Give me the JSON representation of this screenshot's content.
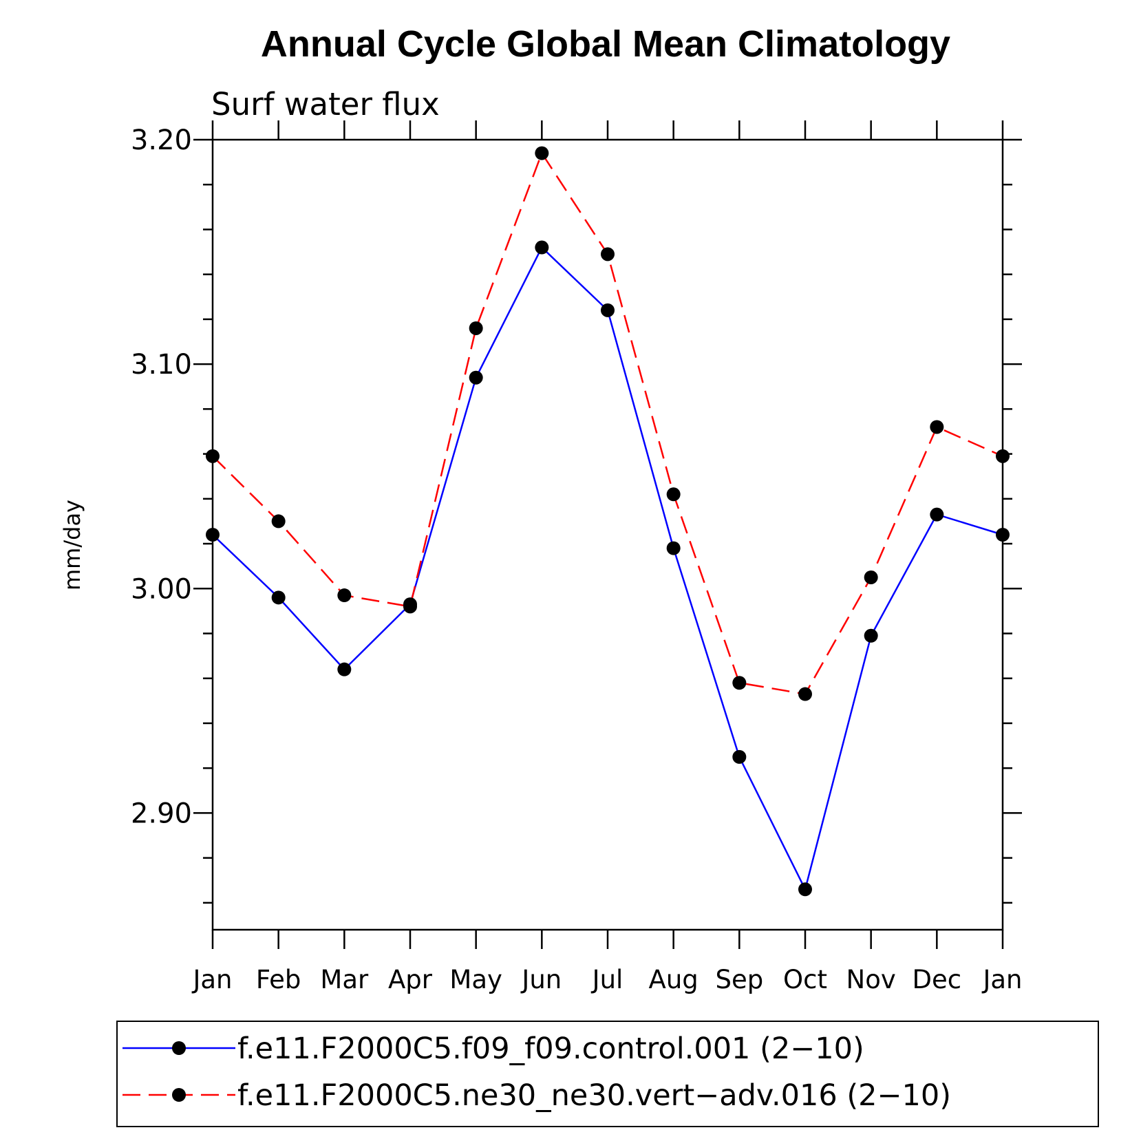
{
  "chart_data": {
    "type": "line",
    "title": "Annual Cycle Global Mean Climatology",
    "subtitle": "Surf water flux",
    "ylabel": "mm/day",
    "xlabel": "",
    "ylim": [
      2.848,
      3.2
    ],
    "categories": [
      "Jan",
      "Feb",
      "Mar",
      "Apr",
      "May",
      "Jun",
      "Jul",
      "Aug",
      "Sep",
      "Oct",
      "Nov",
      "Dec",
      "Jan"
    ],
    "yticks": [
      "2.90",
      "3.00",
      "3.10",
      "3.20"
    ],
    "ytick_values": [
      2.9,
      3.0,
      3.1,
      3.2
    ],
    "grid": false,
    "legend_position": "bottom",
    "series": [
      {
        "name": "f.e11.F2000C5.f09_f09.control.001 (2−10)",
        "color": "#0000ff",
        "dash": "solid",
        "values": [
          3.024,
          2.996,
          2.964,
          2.993,
          3.094,
          3.152,
          3.124,
          3.018,
          2.925,
          2.866,
          2.979,
          3.033,
          3.024
        ]
      },
      {
        "name": "f.e11.F2000C5.ne30_ne30.vert−adv.016 (2−10)",
        "color": "#ff0000",
        "dash": "dashed",
        "values": [
          3.059,
          3.03,
          2.997,
          2.992,
          3.116,
          3.194,
          3.149,
          3.042,
          2.958,
          2.953,
          3.005,
          3.072,
          3.059
        ]
      }
    ]
  }
}
